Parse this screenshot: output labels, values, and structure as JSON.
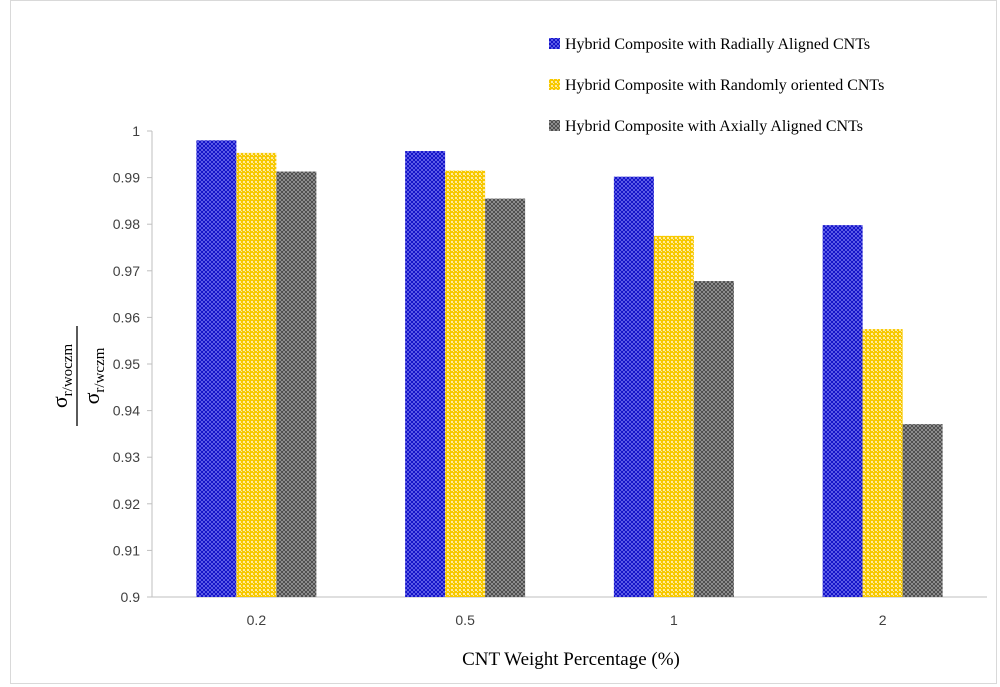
{
  "chart_data": {
    "type": "bar",
    "categories": [
      "0.2",
      "0.5",
      "1",
      "2"
    ],
    "series": [
      {
        "name": "Hybrid Composite with Radially Aligned CNTs",
        "values": [
          0.998,
          0.9957,
          0.9902,
          0.9798
        ],
        "color": "#3030d0",
        "pattern": "checker-blue"
      },
      {
        "name": "Hybrid Composite with Randomly oriented CNTs",
        "values": [
          0.9953,
          0.9915,
          0.9775,
          0.9575
        ],
        "color": "#f5c400",
        "pattern": "dots-yellow"
      },
      {
        "name": "Hybrid Composite with Axially Aligned CNTs",
        "values": [
          0.9913,
          0.9855,
          0.9678,
          0.9371
        ],
        "color": "#707070",
        "pattern": "checker-gray"
      }
    ],
    "yticks": [
      "0.9",
      "0.91",
      "0.92",
      "0.93",
      "0.94",
      "0.95",
      "0.96",
      "0.97",
      "0.98",
      "0.99",
      "1"
    ],
    "ylim": [
      0.9,
      1.0
    ],
    "xlabel": "CNT Weight Percentage (%)",
    "ylabel": {
      "numerator_symbol": "σ",
      "numerator_sub": "r/woczm",
      "denominator_symbol": "σ",
      "denominator_sub": "r/wczm"
    },
    "grid": false,
    "legend_position": "top-right"
  }
}
